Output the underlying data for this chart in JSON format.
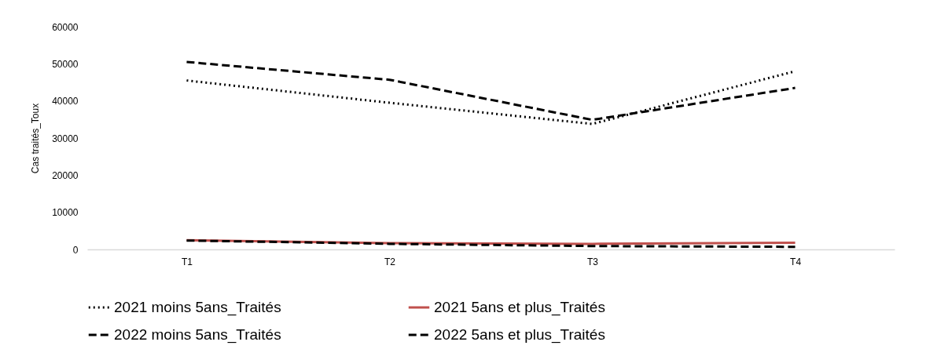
{
  "chart_data": {
    "type": "line",
    "ylabel": "Cas traités_Toux",
    "categories": [
      "T1",
      "T2",
      "T3",
      "T4"
    ],
    "series": [
      {
        "name": "2021  moins 5ans_Traités",
        "color": "#000000",
        "line_style": "dotted",
        "values": [
          45500,
          39500,
          33800,
          48000
        ]
      },
      {
        "name": "2021 5ans et plus_Traités",
        "color": "#c0504d",
        "line_style": "solid",
        "values": [
          2500,
          1700,
          1500,
          1800
        ]
      },
      {
        "name": "2022 moins 5ans_Traités",
        "color": "#000000",
        "line_style": "dashed",
        "values": [
          50500,
          45700,
          34900,
          43500
        ]
      },
      {
        "name": "2022 5ans et plus_Traités",
        "color": "#000000",
        "line_style": "dashed",
        "values": [
          2400,
          1500,
          900,
          700
        ]
      }
    ],
    "ylim": [
      0,
      60000
    ],
    "yticks": [
      0,
      10000,
      20000,
      30000,
      40000,
      50000,
      60000
    ],
    "grid": false,
    "legend": "bottom",
    "marker": "none"
  }
}
